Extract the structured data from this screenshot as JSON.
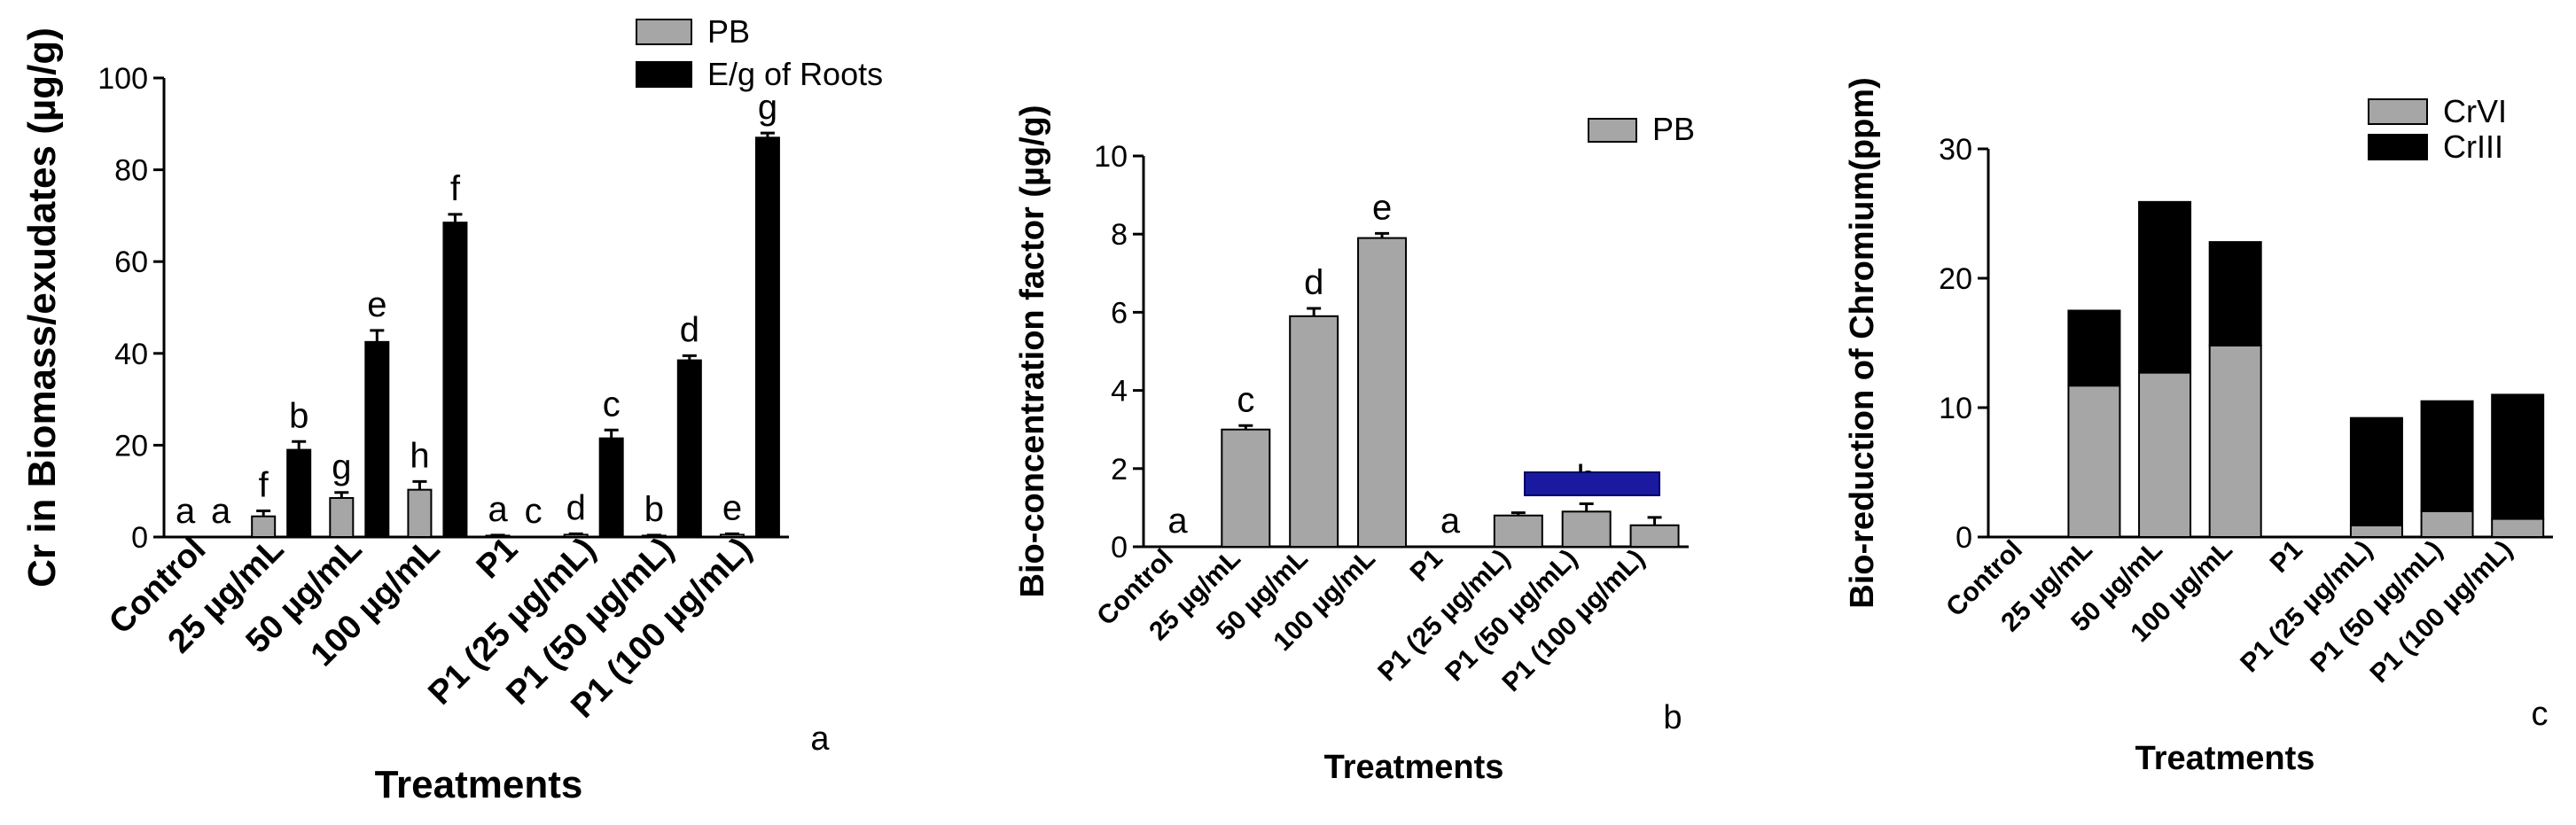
{
  "chart_data": [
    {
      "panel": "a",
      "type": "bar",
      "xlabel": "Treatments",
      "ylabel": "Cr in Biomass/exudates (µg/g)",
      "ylim": [
        0,
        100
      ],
      "yticks": [
        "0",
        "20",
        "40",
        "60",
        "80",
        "100"
      ],
      "categories": [
        "Control",
        "25 µg/mL",
        "50 µg/mL",
        "100 µg/mL",
        "P1",
        "P1 (25 µg/mL)",
        "P1 (50 µg/mL)",
        "P1 (100 µg/mL)"
      ],
      "series": [
        {
          "name": "PB",
          "color": "#a6a6a6",
          "values": [
            0,
            4.5,
            8.5,
            10.3,
            0.3,
            0.5,
            0.3,
            0.5
          ],
          "errors": [
            0,
            1.2,
            1.2,
            1.8,
            0.1,
            0.2,
            0.1,
            0.2
          ],
          "labels": [
            "a",
            "f",
            "g",
            "h",
            "a",
            "d",
            "b",
            "e"
          ]
        },
        {
          "name": "E/g of Roots",
          "color": "#000000",
          "values": [
            0,
            19,
            42.5,
            68.5,
            0,
            21.5,
            38.5,
            87
          ],
          "errors": [
            0,
            1.8,
            2.5,
            1.8,
            0,
            1.8,
            1.0,
            1.0
          ],
          "labels": [
            "a",
            "b",
            "e",
            "f",
            "c",
            "c",
            "d",
            "g"
          ]
        }
      ],
      "legend": "top-right",
      "panel_label": "a"
    },
    {
      "panel": "b",
      "type": "bar",
      "xlabel": "Treatments",
      "ylabel": "Bio-concentration factor  (µg/g)",
      "ylim": [
        0,
        10
      ],
      "yticks": [
        "0",
        "2",
        "4",
        "6",
        "8",
        "10"
      ],
      "categories": [
        "Control",
        "25 µg/mL",
        "50 µg/mL",
        "100 µg/mL",
        "P1",
        "P1 (25 µg/mL)",
        "P1 (50 µg/mL)",
        "P1 (100 µg/mL)"
      ],
      "series": [
        {
          "name": "PB",
          "color": "#a6a6a6",
          "values": [
            0,
            3.0,
            5.9,
            7.9,
            0,
            0.8,
            0.9,
            0.55
          ],
          "errors": [
            0,
            0.1,
            0.2,
            0.12,
            0,
            0.07,
            0.2,
            0.2
          ],
          "labels": [
            "a",
            "c",
            "d",
            "e",
            "a",
            "",
            "b",
            ""
          ]
        }
      ],
      "legend": "top-right",
      "panel_label": "b"
    },
    {
      "panel": "c",
      "type": "bar",
      "stacked": true,
      "xlabel": "Treatments",
      "ylabel": "Bio-reduction of Chromium(ppm)",
      "ylim": [
        0,
        30
      ],
      "yticks": [
        "0",
        "10",
        "20",
        "30"
      ],
      "categories": [
        "Control",
        "25 µg/mL",
        "50 µg/mL",
        "100 µg/mL",
        "P1",
        "P1 (25 µg/mL)",
        "P1 (50 µg/mL)",
        "P1 (100 µg/mL)"
      ],
      "series": [
        {
          "name": "CrVI",
          "color": "#a6a6a6",
          "values": [
            0,
            11.7,
            12.7,
            14.8,
            0,
            0.9,
            2.0,
            1.4
          ]
        },
        {
          "name": "CrIII",
          "color": "#000000",
          "values": [
            0,
            5.8,
            13.2,
            8.0,
            0,
            8.3,
            8.5,
            9.6
          ]
        }
      ],
      "legend": "top-right",
      "panel_label": "c"
    }
  ]
}
